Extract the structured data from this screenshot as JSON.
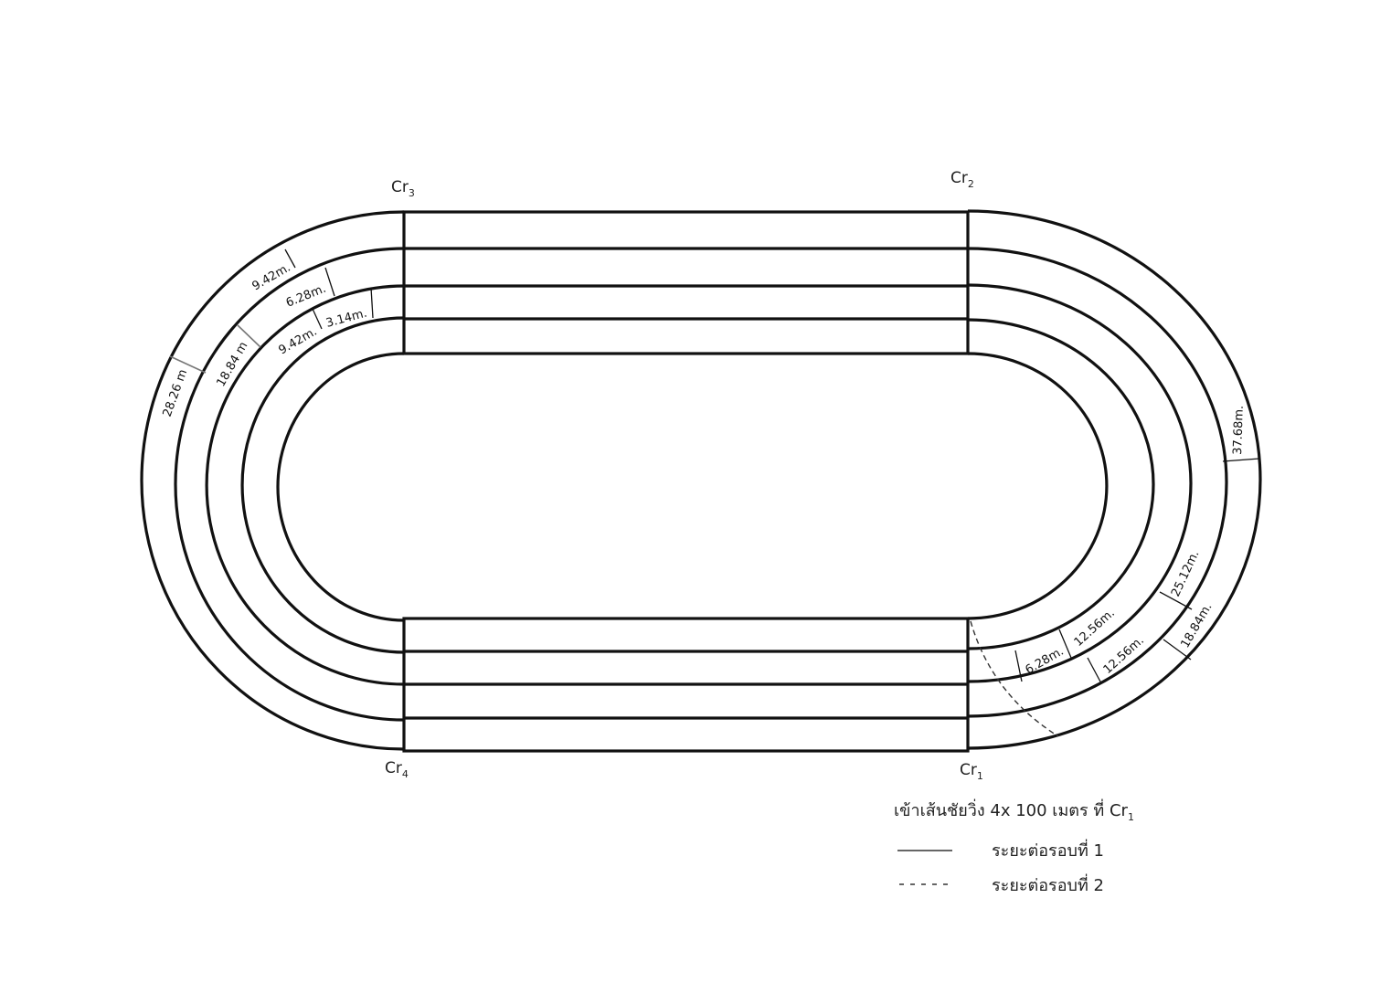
{
  "corners": {
    "cr1": {
      "base": "Cr",
      "sub": "1"
    },
    "cr2": {
      "base": "Cr",
      "sub": "2"
    },
    "cr3": {
      "base": "Cr",
      "sub": "3"
    },
    "cr4": {
      "base": "Cr",
      "sub": "4"
    }
  },
  "distances": {
    "left_9_42_outer": "9.42m.",
    "left_6_28": "6.28m.",
    "left_3_14": "3.14m.",
    "left_9_42_inner": "9.42m.",
    "left_18_84": "18.84 m",
    "left_28_26": "28.26 m",
    "right_37_68": "37.68m.",
    "right_25_12": "25.12m.",
    "right_18_84": "18.84m.",
    "right_12_56_a": "12.56m.",
    "right_12_56_b": "12.56m.",
    "right_6_28": "6.28m."
  },
  "legend": {
    "title": "เข้าเส้นชัยวิ่ง 4x 100 เมตร ที่ Cr",
    "title_sub": "1",
    "solid_label": "ระยะต่อรอบที่ 1",
    "dash_label": "ระยะต่อรอบที่ 2",
    "dash_symbol": "- - - - -"
  },
  "colors": {
    "line": "#111111",
    "grey_tick": "#777777"
  }
}
